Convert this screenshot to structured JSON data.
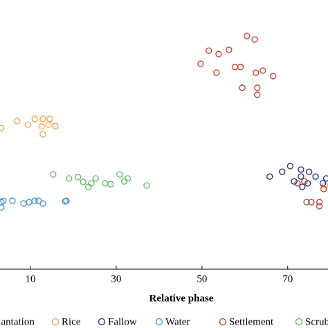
{
  "chart_data": {
    "type": "scatter",
    "x_label": "Relative phase",
    "xlim": [
      2.9,
      79.4
    ],
    "xticks": [
      10,
      30,
      50,
      70
    ],
    "ylim": [
      0,
      100
    ],
    "series": [
      {
        "name": "Plantation",
        "color": "#6b6b2a",
        "x": [
          74.4
        ],
        "values": [
          24.9
        ]
      },
      {
        "name": "Rice",
        "color": "#f0a050",
        "x": [
          3.2,
          6.9,
          9.4,
          11.0,
          12.9,
          14.5,
          15.8,
          12.6,
          14.2,
          12.9,
          78.7
        ],
        "values": [
          52.4,
          55.0,
          53.7,
          55.8,
          55.8,
          55.8,
          53.2,
          53.0,
          53.7,
          50.1,
          31.1
        ]
      },
      {
        "name": "Fallow",
        "color": "#1f2a6b",
        "x": [
          65.8,
          68.7,
          70.6,
          73.1,
          75.0,
          73.1,
          76.5,
          71.5,
          74.7,
          79.0,
          78.2,
          73.4
        ],
        "values": [
          34.4,
          36.2,
          38.3,
          37.0,
          36.2,
          34.4,
          34.4,
          32.6,
          31.9,
          33.7,
          31.9,
          30.6
        ]
      },
      {
        "name": "Water",
        "color": "#3a8fd0",
        "x": [
          3.2,
          3.7,
          5.8,
          8.4,
          9.7,
          11.0,
          11.9,
          12.9,
          18.1,
          18.4,
          3.2
        ],
        "values": [
          24.9,
          25.4,
          25.4,
          24.4,
          24.9,
          25.4,
          25.4,
          24.4,
          25.2,
          25.4,
          22.9
        ]
      },
      {
        "name": "Settlement",
        "color": "#c0392b",
        "x": [
          60.5,
          62.3,
          56.3,
          53.9,
          51.6,
          49.7,
          59.0,
          57.7,
          64.2,
          62.6,
          53.4,
          66.6,
          59.4,
          62.9,
          62.9,
          72.3,
          73.9,
          75.5,
          77.4,
          78.4,
          77.4
        ],
        "values": [
          86.6,
          85.3,
          81.5,
          79.9,
          81.2,
          76.3,
          75.1,
          75.1,
          73.8,
          73.0,
          73.0,
          71.7,
          67.4,
          67.4,
          64.8,
          31.9,
          32.6,
          24.9,
          24.9,
          29.8,
          23.4
        ]
      },
      {
        "name": "Scrub",
        "color": "#5cb85c",
        "x": [
          15.3,
          19.0,
          21.1,
          22.3,
          24.2,
          25.2,
          23.5,
          27.4,
          28.7,
          30.8,
          31.9,
          32.7,
          37.1
        ],
        "values": [
          35.2,
          33.7,
          34.2,
          32.4,
          31.9,
          33.7,
          30.6,
          31.9,
          31.6,
          35.2,
          32.6,
          33.7,
          31.1
        ]
      }
    ]
  }
}
